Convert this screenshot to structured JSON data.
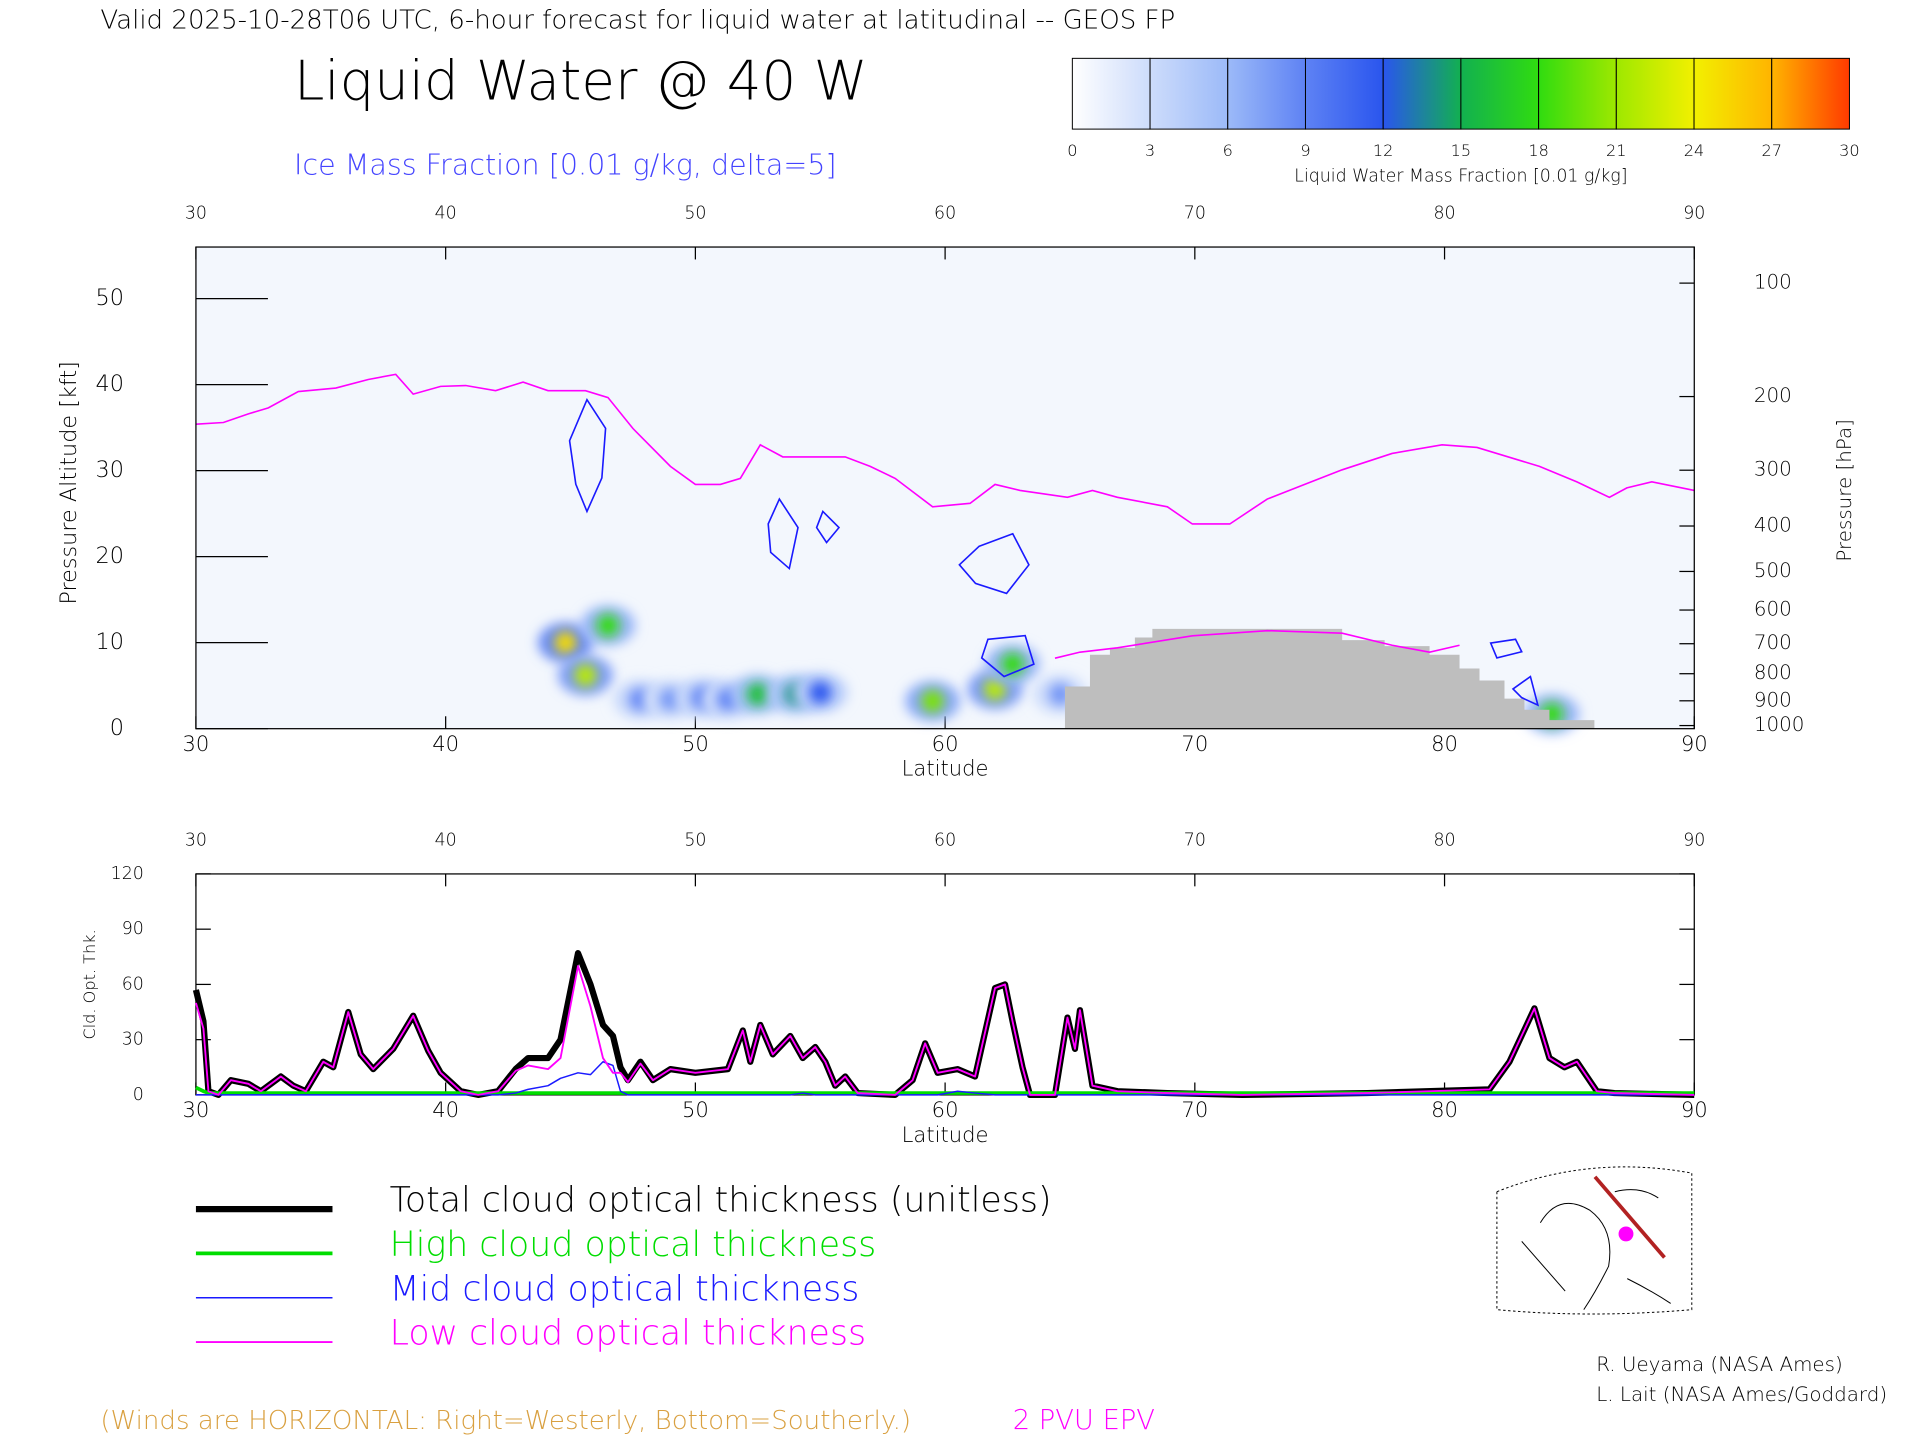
{
  "header": {
    "title": "Valid 2025-10-28T06 UTC, 6-hour forecast for liquid water at latitudinal -- GEOS FP",
    "main_title": "Liquid Water @ 40 W",
    "subtitle": "Ice Mass Fraction [0.01 g/kg, delta=5]"
  },
  "colorbar": {
    "label": "Liquid Water Mass Fraction [0.01 g/kg]",
    "ticks": [
      0,
      3,
      6,
      9,
      12,
      15,
      18,
      21,
      24,
      27,
      30
    ],
    "colors": [
      "#ffffff",
      "#cddcfb",
      "#9cbaf8",
      "#5e82f4",
      "#2a55ee",
      "#12b050",
      "#30dc10",
      "#9ee800",
      "#f2f000",
      "#ffb400",
      "#ff3a00"
    ]
  },
  "chart_data": [
    {
      "type": "cross_section",
      "xlabel": "Latitude",
      "ylabel": "Pressure Altitude [kft]",
      "y2label": "Pressure [hPa]",
      "xlim": [
        30,
        90
      ],
      "xticks": [
        30,
        40,
        50,
        60,
        70,
        80,
        90
      ],
      "ylim": [
        0,
        56
      ],
      "yticks": [
        0,
        10,
        20,
        30,
        40,
        50
      ],
      "y2scale": "pressure",
      "y2ticks": [
        100,
        200,
        300,
        400,
        500,
        600,
        700,
        800,
        900,
        1000
      ],
      "background": "#f3f7fd",
      "series": [
        {
          "name": "2 PVU EPV",
          "color": "#ff00ff",
          "x": [
            30,
            31.1,
            32.1,
            32.9,
            34.1,
            35.6,
            36.9,
            38.0,
            38.7,
            39.8,
            40.8,
            42.0,
            43.1,
            44.1,
            45.6,
            46.5,
            47.5,
            49.0,
            50.0,
            51.0,
            51.8,
            52.6,
            53.5,
            56.0,
            57.0,
            58.0,
            59.5,
            61.0,
            62.0,
            63.0,
            64.9,
            65.9,
            66.9,
            68.9,
            69.9,
            71.4,
            72.9,
            74.4,
            75.9,
            77.9,
            79.9,
            81.3,
            83.8,
            85.3,
            86.6,
            87.3,
            88.3,
            90
          ],
          "values": [
            35.4,
            35.6,
            36.6,
            37.3,
            39.2,
            39.6,
            40.6,
            41.2,
            38.9,
            39.8,
            39.9,
            39.3,
            40.3,
            39.3,
            39.3,
            38.5,
            34.9,
            30.5,
            28.4,
            28.4,
            29.1,
            33.0,
            31.6,
            31.6,
            30.5,
            29.1,
            25.8,
            26.2,
            28.4,
            27.7,
            26.9,
            27.7,
            26.9,
            25.8,
            23.8,
            23.8,
            26.7,
            28.4,
            30.1,
            32.0,
            33.0,
            32.7,
            30.5,
            28.7,
            26.9,
            28.0,
            28.7,
            27.7
          ]
        },
        {
          "color": "#ff00ff",
          "x": [
            64.4,
            65.4,
            66.9,
            69.9,
            72.9,
            75.9,
            77.9,
            79.4,
            80.6
          ],
          "values": [
            8.2,
            8.9,
            9.4,
            10.8,
            11.4,
            11.1,
            9.7,
            8.9,
            9.7
          ]
        }
      ],
      "terrain": {
        "color": "#bebebe",
        "x": [
          64.8,
          65.8,
          65.8,
          66.6,
          66.6,
          67.6,
          67.6,
          68.3,
          68.3,
          75.9,
          75.9,
          77.6,
          77.6,
          79.4,
          79.4,
          80.6,
          80.6,
          81.4,
          81.4,
          82.4,
          82.4,
          83.2,
          83.2,
          84.2,
          84.2,
          86.0
        ],
        "values": [
          4.9,
          4.9,
          8.6,
          8.6,
          9.4,
          9.4,
          10.6,
          10.6,
          11.6,
          11.6,
          10.3,
          10.3,
          9.6,
          9.6,
          8.6,
          8.6,
          7.0,
          7.0,
          5.6,
          5.6,
          3.5,
          3.5,
          2.2,
          2.2,
          1.0,
          1.0
        ]
      },
      "cells": {
        "x": [
          44.8,
          45.6,
          46.5,
          47.8,
          49.0,
          50.3,
          51.3,
          52.5,
          54.0,
          55.0,
          59.5,
          62.0,
          62.7,
          64.6,
          84.3
        ],
        "y": [
          10.0,
          6.2,
          12.0,
          3.4,
          3.4,
          3.6,
          3.4,
          4.0,
          4.0,
          4.2,
          3.2,
          4.6,
          7.5,
          4.0,
          1.7
        ],
        "values": [
          25,
          22,
          18,
          9,
          8,
          10,
          9,
          16,
          14,
          12,
          20,
          22,
          18,
          8,
          18
        ]
      }
    },
    {
      "type": "line",
      "xlabel": "Latitude",
      "ylabel": "Cld. Opt. Thk.",
      "xlim": [
        30,
        90
      ],
      "xticks": [
        30,
        40,
        50,
        60,
        70,
        80,
        90
      ],
      "ylim": [
        0,
        120
      ],
      "yticks": [
        0,
        30,
        60,
        90,
        120
      ],
      "x": [
        30,
        30.3,
        30.5,
        30.9,
        31.4,
        32.1,
        32.6,
        33.4,
        33.9,
        34.4,
        35.1,
        35.5,
        36.1,
        36.6,
        37.1,
        37.9,
        38.7,
        39.3,
        39.8,
        40.6,
        41.3,
        42.1,
        42.8,
        43.3,
        44.1,
        44.6,
        45.3,
        45.8,
        46.3,
        46.7,
        47.0,
        47.3,
        47.8,
        48.3,
        49.0,
        50.0,
        51.3,
        51.9,
        52.2,
        52.6,
        53.1,
        53.8,
        54.3,
        54.8,
        55.2,
        55.6,
        56.0,
        56.5,
        58.0,
        58.7,
        59.2,
        59.7,
        60.5,
        61.2,
        62.0,
        62.4,
        62.7,
        63.1,
        63.4,
        64.4,
        64.9,
        65.2,
        65.4,
        65.9,
        66.9,
        68.9,
        71.9,
        76.9,
        81.8,
        82.6,
        83.6,
        84.2,
        84.8,
        85.3,
        86.1,
        86.8,
        90
      ],
      "series": [
        {
          "name": "Total cloud optical thickness (unitless)",
          "color": "#000000",
          "values": [
            57,
            40,
            2,
            0,
            8,
            6,
            2,
            10,
            5,
            2,
            18,
            15,
            45,
            22,
            14,
            25,
            43,
            24,
            12,
            2,
            0,
            2,
            14,
            20,
            20,
            30,
            77,
            60,
            38,
            32,
            15,
            8,
            18,
            8,
            14,
            12,
            14,
            35,
            18,
            38,
            22,
            32,
            20,
            26,
            18,
            5,
            10,
            1,
            0,
            8,
            28,
            12,
            14,
            10,
            58,
            60,
            40,
            15,
            0,
            0,
            42,
            25,
            46,
            5,
            2,
            1,
            0,
            1,
            3,
            18,
            47,
            20,
            15,
            18,
            2,
            1,
            0
          ]
        },
        {
          "name": "High cloud optical thickness",
          "color": "#00dd00",
          "values": [
            4,
            2,
            1,
            1,
            1,
            1,
            1,
            1,
            1,
            1,
            1,
            1,
            1,
            1,
            1,
            1,
            1,
            1,
            1,
            1,
            1,
            1,
            1,
            1,
            1,
            1,
            1,
            1,
            1,
            1,
            1,
            1,
            1,
            1,
            1,
            1,
            1,
            1,
            1,
            1,
            1,
            1,
            1,
            1,
            1,
            1,
            1,
            1,
            1,
            1,
            1,
            1,
            1,
            1,
            1,
            1,
            1,
            1,
            1,
            1,
            1,
            1,
            1,
            1,
            1,
            1,
            1,
            1,
            1,
            1,
            1,
            1,
            1,
            1,
            1,
            1,
            1
          ]
        },
        {
          "name": "Mid cloud optical thickness",
          "color": "#1a1aff",
          "values": [
            0,
            0,
            0,
            0,
            0,
            0,
            0,
            0,
            0,
            0,
            0,
            0,
            0,
            0,
            0,
            0,
            0,
            0,
            0,
            0,
            0,
            0,
            1,
            3,
            5,
            9,
            12,
            11,
            18,
            16,
            2,
            0,
            0,
            0,
            0,
            0,
            0,
            0,
            0,
            0,
            0,
            0,
            1,
            0,
            0,
            0,
            0,
            0,
            0,
            0,
            0,
            0,
            2,
            1,
            0,
            0,
            0,
            0,
            0,
            0,
            0,
            0,
            0,
            0,
            0,
            0,
            0,
            0,
            0,
            0,
            0,
            0,
            0,
            0,
            0,
            0,
            0
          ]
        },
        {
          "name": "Low cloud optical thickness",
          "color": "#ff00ff",
          "values": [
            50,
            36,
            2,
            0,
            8,
            6,
            2,
            10,
            5,
            2,
            18,
            15,
            45,
            22,
            14,
            25,
            43,
            24,
            12,
            2,
            0,
            2,
            13,
            16,
            14,
            20,
            70,
            48,
            20,
            12,
            12,
            7,
            17,
            8,
            14,
            12,
            14,
            35,
            18,
            38,
            22,
            32,
            20,
            26,
            18,
            5,
            10,
            1,
            0,
            8,
            28,
            12,
            14,
            10,
            58,
            60,
            40,
            15,
            0,
            0,
            42,
            25,
            46,
            5,
            2,
            1,
            0,
            1,
            3,
            18,
            47,
            20,
            15,
            18,
            2,
            1,
            0
          ]
        }
      ]
    }
  ],
  "footer": {
    "winds_note": "(Winds are HORIZONTAL: Right=Westerly, Bottom=Southerly.)",
    "credits": [
      "R. Ueyama (NASA Ames)",
      "L. Lait (NASA Ames/Goddard)"
    ]
  }
}
